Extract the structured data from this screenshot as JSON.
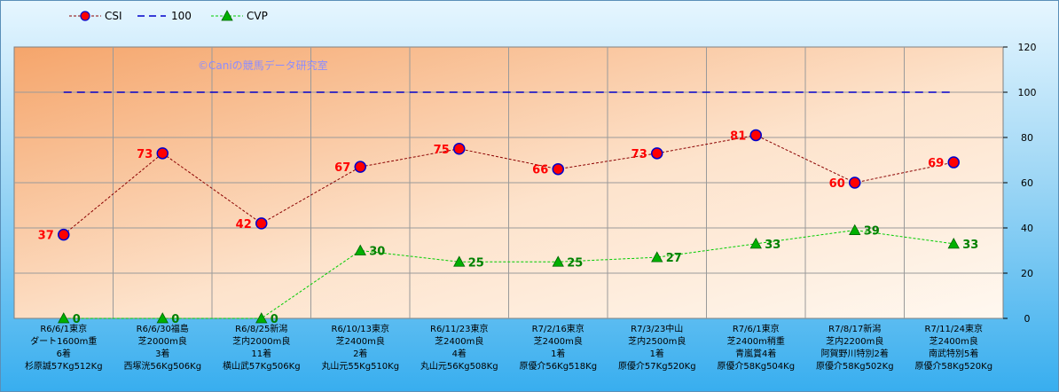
{
  "watermark": "©Caniの競馬データ研究室",
  "legend": [
    {
      "name": "CSI",
      "color": "#8b0000",
      "marker": "circle"
    },
    {
      "name": "100",
      "color": "#0000cc",
      "marker": "none"
    },
    {
      "name": "CVP",
      "color": "#00cc00",
      "marker": "triangle"
    }
  ],
  "chart_data": {
    "type": "line",
    "ylim": [
      0,
      120
    ],
    "yticks": [
      0,
      20,
      40,
      60,
      80,
      100,
      120
    ],
    "grid": true,
    "legend_position": "top-left",
    "y_axis_side": "right",
    "categories": [
      [
        "R6/6/1東京",
        "ダート1600m重",
        "6着",
        "杉原誠57Kg512Kg"
      ],
      [
        "R6/6/30福島",
        "芝2000m良",
        "3着",
        "西塚洸56Kg506Kg"
      ],
      [
        "R6/8/25新潟",
        "芝内2000m良",
        "11着",
        "横山武57Kg506Kg"
      ],
      [
        "R6/10/13東京",
        "芝2400m良",
        "2着",
        "丸山元55Kg510Kg"
      ],
      [
        "R6/11/23東京",
        "芝2400m良",
        "4着",
        "丸山元56Kg508Kg"
      ],
      [
        "R7/2/16東京",
        "芝2400m良",
        "1着",
        "原優介56Kg518Kg"
      ],
      [
        "R7/3/23中山",
        "芝内2500m良",
        "1着",
        "原優介57Kg520Kg"
      ],
      [
        "R7/6/1東京",
        "芝2400m稍重",
        "青嵐賞4着",
        "原優介58Kg504Kg"
      ],
      [
        "R7/8/17新潟",
        "芝内2200m良",
        "阿賀野川特別2着",
        "原優介58Kg502Kg"
      ],
      [
        "R7/11/24東京",
        "芝2400m良",
        "南武特別5着",
        "原優介58Kg520Kg"
      ]
    ],
    "series": [
      {
        "name": "CSI",
        "values": [
          37,
          73,
          42,
          67,
          75,
          66,
          73,
          81,
          60,
          69
        ],
        "color": "#8b0000",
        "label_color": "#ff0000"
      },
      {
        "name": "100",
        "values": [
          100,
          100,
          100,
          100,
          100,
          100,
          100,
          100,
          100,
          100
        ],
        "color": "#0000cc"
      },
      {
        "name": "CVP",
        "values": [
          0,
          0,
          0,
          30,
          25,
          25,
          27,
          33,
          39,
          33
        ],
        "color": "#00cc00",
        "label_color": "#008000"
      }
    ],
    "csi_label_side": [
      "left",
      "left",
      "left",
      "left",
      "left",
      "left",
      "left",
      "left",
      "left",
      "left"
    ],
    "cvp_label_side": [
      "right",
      "right",
      "right",
      "right",
      "right",
      "right",
      "right",
      "right",
      "right",
      "right"
    ]
  }
}
